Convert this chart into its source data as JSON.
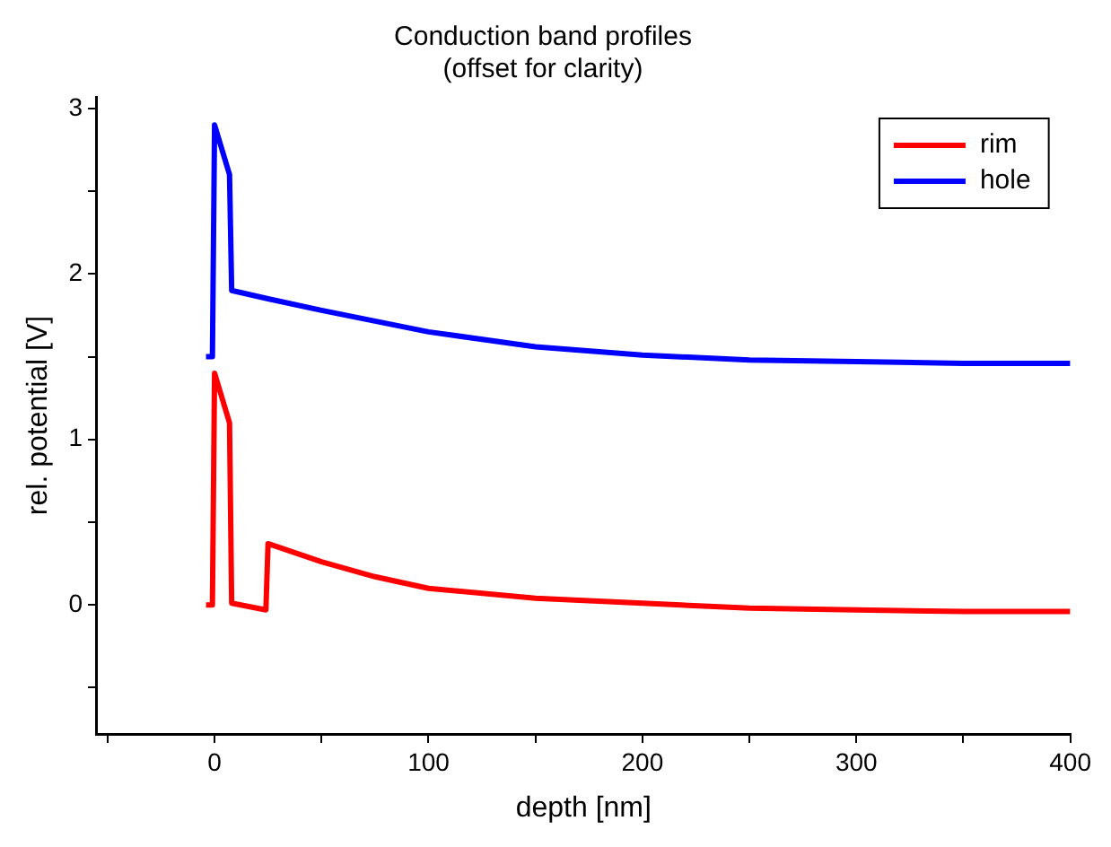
{
  "chart_data": {
    "type": "line",
    "title": "Conduction band profiles",
    "subtitle": "(offset for clarity)",
    "xlabel": "depth [nm]",
    "ylabel": "rel. potential [V]",
    "series": [
      {
        "name": "rim",
        "color": "#ff0000",
        "x": [
          -4,
          -1,
          0,
          7,
          8,
          24,
          25,
          50,
          75,
          100,
          150,
          200,
          250,
          300,
          350,
          400
        ],
        "values": [
          0,
          0,
          1.4,
          1.1,
          0.01,
          -0.03,
          0.37,
          0.26,
          0.17,
          0.1,
          0.04,
          0.01,
          -0.02,
          -0.03,
          -0.04,
          -0.04
        ]
      },
      {
        "name": "hole",
        "color": "#0000ff",
        "x": [
          -4,
          -1,
          0,
          7,
          8,
          25,
          50,
          100,
          150,
          200,
          250,
          300,
          350,
          400
        ],
        "values": [
          1.5,
          1.5,
          2.9,
          2.6,
          1.9,
          1.85,
          1.78,
          1.65,
          1.56,
          1.51,
          1.48,
          1.47,
          1.46,
          1.46
        ]
      }
    ],
    "xlim": [
      -55,
      400
    ],
    "ylim": [
      -0.78,
      3.07
    ],
    "xticks": [
      {
        "value": -50,
        "label": null
      },
      0,
      {
        "value": 50,
        "label": null
      },
      100,
      {
        "value": 150,
        "label": null
      },
      200,
      {
        "value": 250,
        "label": null
      },
      300,
      {
        "value": 350,
        "label": null
      },
      400
    ],
    "yticks": [
      {
        "value": -0.5,
        "label": null
      },
      0,
      {
        "value": 0.5,
        "label": null
      },
      1,
      {
        "value": 1.5,
        "label": null
      },
      2,
      {
        "value": 2.5,
        "label": null
      },
      3
    ],
    "legend": "top right",
    "marker": "none",
    "line_style": "solid"
  }
}
